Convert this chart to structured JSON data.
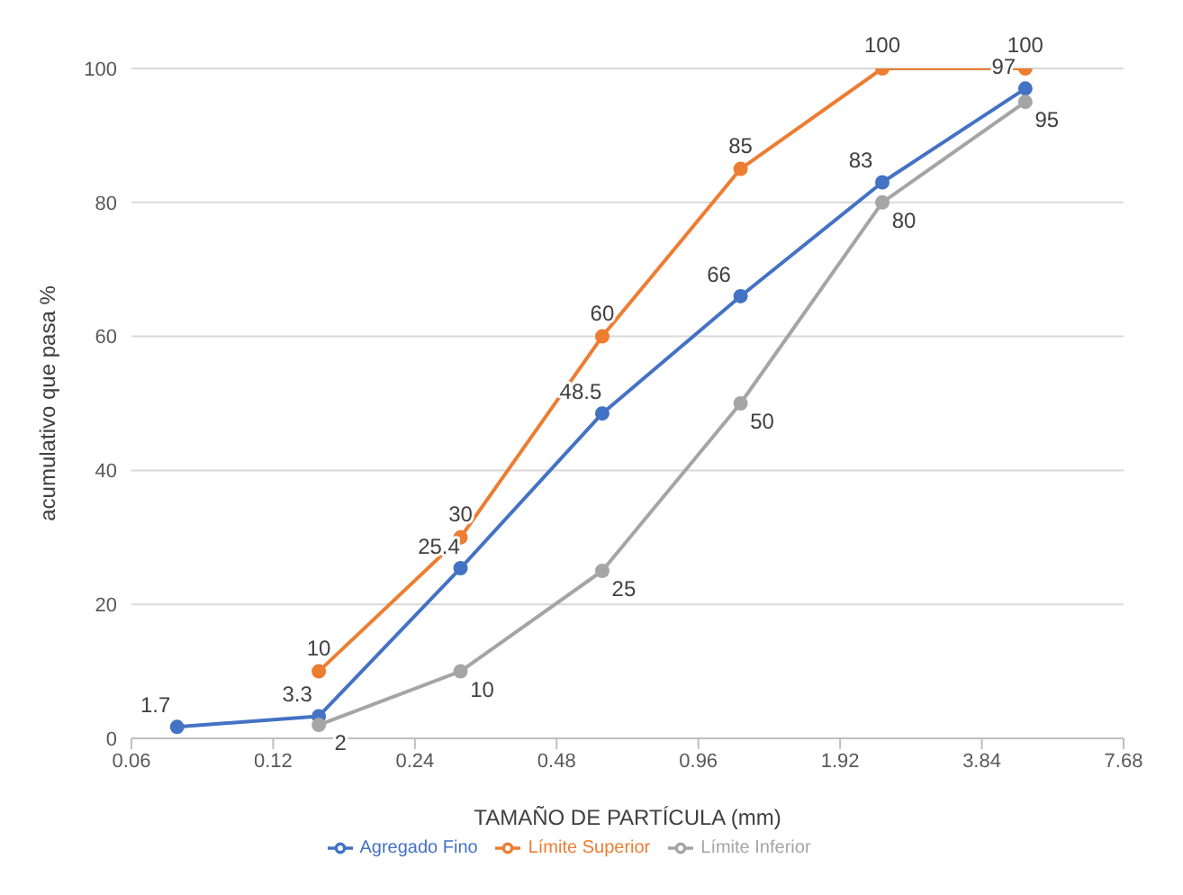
{
  "chart_data": {
    "type": "line",
    "xlabel": "TAMAÑO DE PARTÍCULA (mm)",
    "ylabel": "acumulativo que pasa %",
    "log": "x",
    "xlim": [
      0.06,
      7.68
    ],
    "xticks": [
      0.06,
      0.12,
      0.24,
      0.48,
      0.96,
      1.92,
      3.84,
      7.68
    ],
    "ylim": [
      0,
      100
    ],
    "yticks": [
      0,
      20,
      40,
      60,
      80,
      100
    ],
    "grid": "y",
    "legend": "bottom",
    "marker": "circle",
    "line_style": "solid",
    "data_labels": true,
    "series": [
      {
        "name": "Agregado Fino",
        "color": "#4472c4",
        "x": [
          0.075,
          0.15,
          0.3,
          0.6,
          1.18,
          2.36,
          4.75
        ],
        "values": [
          1.7,
          3.3,
          25.4,
          48.5,
          66,
          83,
          97
        ]
      },
      {
        "name": "Límite Superior",
        "color": "#ed7d31",
        "x": [
          0.15,
          0.3,
          0.6,
          1.18,
          2.36,
          4.75
        ],
        "values": [
          10,
          30,
          60,
          85,
          100,
          100
        ]
      },
      {
        "name": "Límite Inferior",
        "color": "#a5a5a5",
        "x": [
          0.15,
          0.3,
          0.6,
          1.18,
          2.36,
          4.75
        ],
        "values": [
          2,
          10,
          25,
          50,
          80,
          95
        ]
      }
    ]
  }
}
